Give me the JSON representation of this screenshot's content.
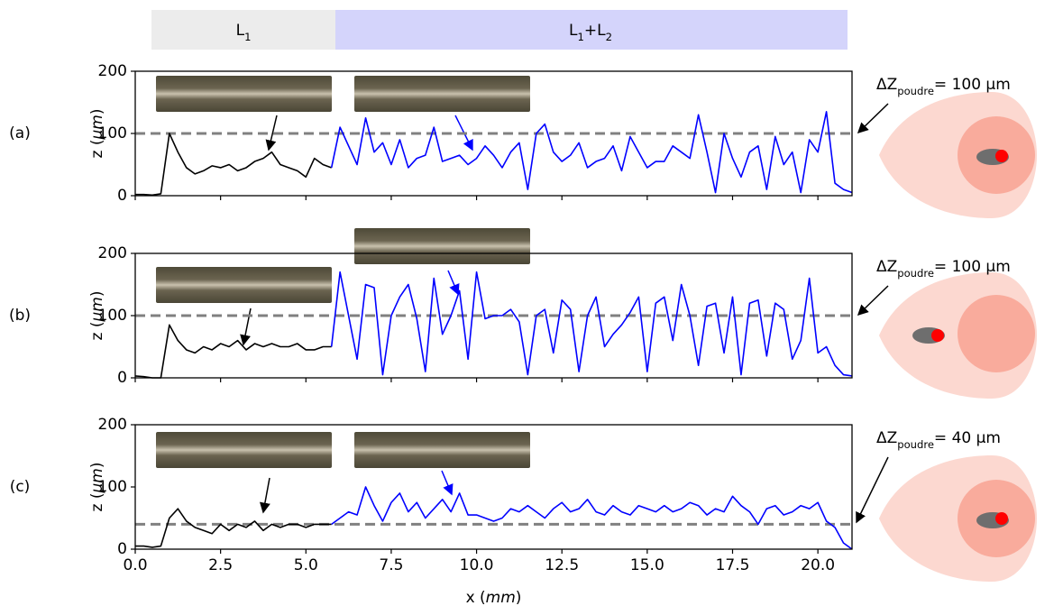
{
  "banner": [
    [
      "L",
      "1"
    ],
    [
      "L",
      "1",
      "+L",
      "2"
    ]
  ],
  "chart_data": [
    {
      "type": "line",
      "label": "(a)",
      "y_label": [
        "z (",
        "µm",
        ")"
      ],
      "annotation": [
        "ΔZ",
        "poudre",
        "= 100 µm"
      ],
      "hline": 100,
      "xlim": [
        0,
        21
      ],
      "xticks": [
        0,
        2.5,
        5,
        7.5,
        10,
        12.5,
        15,
        17.5,
        20
      ],
      "ylim": [
        0,
        200
      ],
      "yticks": [
        0,
        100,
        200
      ],
      "series": [
        {
          "color": "#000000",
          "x": [
            0,
            0.25,
            0.5,
            0.75,
            1,
            1.25,
            1.5,
            1.75,
            2,
            2.25,
            2.5,
            2.75,
            3,
            3.25,
            3.5,
            3.75,
            4,
            4.25,
            4.5,
            4.75,
            5,
            5.25,
            5.5,
            5.75
          ],
          "values": [
            2,
            2,
            1,
            3,
            100,
            70,
            45,
            35,
            40,
            48,
            45,
            50,
            40,
            45,
            55,
            60,
            70,
            50,
            45,
            40,
            30,
            60,
            50,
            45
          ]
        },
        {
          "color": "#0000ff",
          "x": [
            5.75,
            6,
            6.25,
            6.5,
            6.75,
            7,
            7.25,
            7.5,
            7.75,
            8,
            8.25,
            8.5,
            8.75,
            9,
            9.25,
            9.5,
            9.75,
            10,
            10.25,
            10.5,
            10.75,
            11,
            11.25,
            11.5,
            11.75,
            12,
            12.25,
            12.5,
            12.75,
            13,
            13.25,
            13.5,
            13.75,
            14,
            14.25,
            14.5,
            14.75,
            15,
            15.25,
            15.5,
            15.75,
            16,
            16.25,
            16.5,
            16.75,
            17,
            17.25,
            17.5,
            17.75,
            18,
            18.25,
            18.5,
            18.75,
            19,
            19.25,
            19.5,
            19.75,
            20,
            20.25,
            20.5,
            20.75,
            21
          ],
          "values": [
            45,
            110,
            80,
            50,
            125,
            70,
            85,
            50,
            90,
            45,
            60,
            65,
            110,
            55,
            60,
            65,
            50,
            60,
            80,
            65,
            45,
            70,
            85,
            10,
            100,
            115,
            70,
            55,
            65,
            85,
            45,
            55,
            60,
            80,
            40,
            95,
            70,
            45,
            55,
            55,
            80,
            70,
            60,
            130,
            70,
            5,
            100,
            60,
            30,
            70,
            80,
            10,
            95,
            50,
            70,
            5,
            90,
            70,
            135,
            20,
            10,
            5
          ]
        }
      ]
    },
    {
      "type": "line",
      "label": "(b)",
      "y_label": [
        "z (",
        "µm",
        ")"
      ],
      "annotation": [
        "ΔZ",
        "poudre",
        "= 100 µm"
      ],
      "hline": 100,
      "xlim": [
        0,
        21
      ],
      "xticks": [
        0,
        2.5,
        5,
        7.5,
        10,
        12.5,
        15,
        17.5,
        20
      ],
      "ylim": [
        0,
        200
      ],
      "yticks": [
        0,
        100,
        200
      ],
      "series": [
        {
          "color": "#000000",
          "x": [
            0,
            0.25,
            0.5,
            0.75,
            1,
            1.25,
            1.5,
            1.75,
            2,
            2.25,
            2.5,
            2.75,
            3,
            3.25,
            3.5,
            3.75,
            4,
            4.25,
            4.5,
            4.75,
            5,
            5.25,
            5.5,
            5.75
          ],
          "values": [
            3,
            2,
            0,
            0,
            85,
            60,
            45,
            40,
            50,
            45,
            55,
            50,
            60,
            45,
            55,
            50,
            55,
            50,
            50,
            55,
            45,
            45,
            50,
            50
          ]
        },
        {
          "color": "#0000ff",
          "x": [
            5.75,
            6,
            6.25,
            6.5,
            6.75,
            7,
            7.25,
            7.5,
            7.75,
            8,
            8.25,
            8.5,
            8.75,
            9,
            9.25,
            9.5,
            9.75,
            10,
            10.25,
            10.5,
            10.75,
            11,
            11.25,
            11.5,
            11.75,
            12,
            12.25,
            12.5,
            12.75,
            13,
            13.25,
            13.5,
            13.75,
            14,
            14.25,
            14.5,
            14.75,
            15,
            15.25,
            15.5,
            15.75,
            16,
            16.25,
            16.5,
            16.75,
            17,
            17.25,
            17.5,
            17.75,
            18,
            18.25,
            18.5,
            18.75,
            19,
            19.25,
            19.5,
            19.75,
            20,
            20.25,
            20.5,
            20.75,
            21
          ],
          "values": [
            50,
            170,
            100,
            30,
            150,
            145,
            5,
            100,
            130,
            150,
            95,
            10,
            160,
            70,
            100,
            140,
            30,
            170,
            95,
            100,
            100,
            110,
            90,
            5,
            100,
            110,
            40,
            125,
            110,
            10,
            100,
            130,
            50,
            70,
            85,
            105,
            130,
            10,
            120,
            130,
            60,
            150,
            100,
            20,
            115,
            120,
            40,
            130,
            5,
            120,
            125,
            35,
            120,
            110,
            30,
            60,
            160,
            40,
            50,
            20,
            5,
            3
          ]
        }
      ]
    },
    {
      "type": "line",
      "label": "(c)",
      "y_label": [
        "z (",
        "µm",
        ")"
      ],
      "x_label": [
        "x (",
        "mm",
        ")"
      ],
      "annotation": [
        "ΔZ",
        "poudre",
        "= 40 µm"
      ],
      "hline": 40,
      "xlim": [
        0,
        21
      ],
      "xticks": [
        {
          "value": 0,
          "label": "0.0"
        },
        2.5,
        {
          "value": 5,
          "label": "5.0"
        },
        7.5,
        {
          "value": 10,
          "label": "10.0"
        },
        12.5,
        {
          "value": 15,
          "label": "15.0"
        },
        17.5,
        {
          "value": 20,
          "label": "20.0"
        }
      ],
      "ylim": [
        0,
        200
      ],
      "yticks": [
        0,
        100,
        200
      ],
      "series": [
        {
          "color": "#000000",
          "x": [
            0,
            0.25,
            0.5,
            0.75,
            1,
            1.25,
            1.5,
            1.75,
            2,
            2.25,
            2.5,
            2.75,
            3,
            3.25,
            3.5,
            3.75,
            4,
            4.25,
            4.5,
            4.75,
            5,
            5.25,
            5.5,
            5.75
          ],
          "values": [
            5,
            5,
            3,
            5,
            50,
            65,
            45,
            35,
            30,
            25,
            40,
            30,
            40,
            35,
            45,
            30,
            40,
            35,
            40,
            40,
            35,
            40,
            40,
            40
          ]
        },
        {
          "color": "#0000ff",
          "x": [
            5.75,
            6,
            6.25,
            6.5,
            6.75,
            7,
            7.25,
            7.5,
            7.75,
            8,
            8.25,
            8.5,
            8.75,
            9,
            9.25,
            9.5,
            9.75,
            10,
            10.25,
            10.5,
            10.75,
            11,
            11.25,
            11.5,
            11.75,
            12,
            12.25,
            12.5,
            12.75,
            13,
            13.25,
            13.5,
            13.75,
            14,
            14.25,
            14.5,
            14.75,
            15,
            15.25,
            15.5,
            15.75,
            16,
            16.25,
            16.5,
            16.75,
            17,
            17.25,
            17.5,
            17.75,
            18,
            18.25,
            18.5,
            18.75,
            19,
            19.25,
            19.5,
            19.75,
            20,
            20.25,
            20.5,
            20.75,
            21
          ],
          "values": [
            40,
            50,
            60,
            55,
            100,
            70,
            45,
            75,
            90,
            60,
            75,
            50,
            65,
            80,
            60,
            90,
            55,
            55,
            50,
            45,
            50,
            65,
            60,
            70,
            60,
            50,
            65,
            75,
            60,
            65,
            80,
            60,
            55,
            70,
            60,
            55,
            70,
            65,
            60,
            70,
            60,
            65,
            75,
            70,
            55,
            65,
            60,
            85,
            70,
            60,
            40,
            65,
            70,
            55,
            60,
            70,
            65,
            75,
            45,
            35,
            10,
            0
          ]
        }
      ]
    }
  ]
}
